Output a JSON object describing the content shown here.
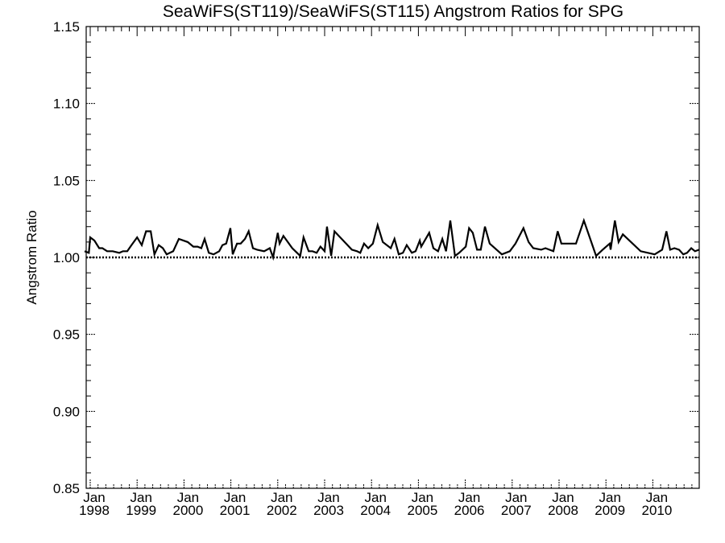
{
  "chart_data": {
    "type": "line",
    "title": "SeaWiFS(ST119)/SeaWiFS(ST115)  Angstrom Ratios for SPG",
    "xlabel": "",
    "ylabel": "Angstrom Ratio",
    "ylim": [
      0.85,
      1.15
    ],
    "xlim": [
      1997.91,
      2011.0
    ],
    "grid": false,
    "yticks": [
      0.85,
      0.9,
      0.95,
      1.0,
      1.05,
      1.1,
      1.15
    ],
    "ytick_labels": [
      "0.85",
      "0.90",
      "0.95",
      "1.00",
      "1.05",
      "1.10",
      "1.15"
    ],
    "xticks": [
      1998,
      1999,
      2000,
      2001,
      2002,
      2003,
      2004,
      2005,
      2006,
      2007,
      2008,
      2009,
      2010
    ],
    "xtick_labels": [
      [
        "Jan",
        "1998"
      ],
      [
        "Jan",
        "1999"
      ],
      [
        "Jan",
        "2000"
      ],
      [
        "Jan",
        "2001"
      ],
      [
        "Jan",
        "2002"
      ],
      [
        "Jan",
        "2003"
      ],
      [
        "Jan",
        "2004"
      ],
      [
        "Jan",
        "2005"
      ],
      [
        "Jan",
        "2006"
      ],
      [
        "Jan",
        "2007"
      ],
      [
        "Jan",
        "2008"
      ],
      [
        "Jan",
        "2009"
      ],
      [
        "Jan",
        "2010"
      ]
    ],
    "reference_line": {
      "y": 1.0,
      "style": "dotted"
    },
    "series": [
      {
        "name": "Angstrom Ratio",
        "color": "#000000",
        "x": [
          1997.88,
          1997.97,
          1998.0,
          1998.09,
          1998.19,
          1998.26,
          1998.36,
          1998.48,
          1998.62,
          1998.7,
          1998.79,
          1998.88,
          1999.0,
          1999.1,
          1999.19,
          1999.29,
          1999.37,
          1999.46,
          1999.55,
          1999.63,
          1999.77,
          1999.89,
          2000.08,
          2000.2,
          2000.29,
          2000.37,
          2000.44,
          2000.53,
          2000.63,
          2000.75,
          2000.82,
          2000.9,
          2000.99,
          2001.04,
          2001.13,
          2001.21,
          2001.3,
          2001.38,
          2001.47,
          2001.56,
          2001.71,
          2001.83,
          2001.9,
          2002.0,
          2002.04,
          2002.12,
          2002.31,
          2002.48,
          2002.55,
          2002.66,
          2002.74,
          2002.83,
          2002.91,
          2003.0,
          2003.05,
          2003.14,
          2003.21,
          2003.58,
          2003.69,
          2003.76,
          2003.84,
          2003.93,
          2004.03,
          2004.13,
          2004.24,
          2004.41,
          2004.49,
          2004.58,
          2004.67,
          2004.75,
          2004.86,
          2004.94,
          2005.03,
          2005.06,
          2005.23,
          2005.32,
          2005.42,
          2005.51,
          2005.59,
          2005.68,
          2005.78,
          2005.87,
          2006.01,
          2006.08,
          2006.16,
          2006.25,
          2006.33,
          2006.42,
          2006.52,
          2006.78,
          2006.95,
          2007.07,
          2007.24,
          2007.35,
          2007.45,
          2007.62,
          2007.71,
          2007.88,
          2007.97,
          2008.05,
          2008.36,
          2008.53,
          2008.79,
          2008.93,
          2009.08,
          2009.1,
          2009.19,
          2009.27,
          2009.36,
          2009.74,
          2010.04,
          2010.2,
          2010.29,
          2010.37,
          2010.46,
          2010.56,
          2010.65,
          2010.73,
          2010.82,
          2010.9,
          2010.99
        ],
        "y": [
          1.004,
          1.003,
          1.013,
          1.011,
          1.006,
          1.006,
          1.004,
          1.004,
          1.003,
          1.004,
          1.004,
          1.008,
          1.013,
          1.008,
          1.017,
          1.017,
          1.002,
          1.008,
          1.006,
          1.002,
          1.004,
          1.012,
          1.01,
          1.007,
          1.007,
          1.006,
          1.012,
          1.003,
          1.002,
          1.004,
          1.008,
          1.009,
          1.019,
          1.002,
          1.009,
          1.009,
          1.012,
          1.017,
          1.006,
          1.005,
          1.004,
          1.006,
          1.0,
          1.016,
          1.009,
          1.014,
          1.006,
          1.001,
          1.013,
          1.004,
          1.004,
          1.003,
          1.007,
          1.004,
          1.02,
          1.001,
          1.017,
          1.005,
          1.004,
          1.003,
          1.009,
          1.006,
          1.009,
          1.021,
          1.01,
          1.006,
          1.012,
          1.002,
          1.003,
          1.008,
          1.003,
          1.004,
          1.011,
          1.007,
          1.016,
          1.006,
          1.004,
          1.012,
          1.004,
          1.024,
          1.001,
          1.003,
          1.007,
          1.019,
          1.016,
          1.005,
          1.005,
          1.02,
          1.009,
          1.002,
          1.004,
          1.009,
          1.019,
          1.01,
          1.006,
          1.005,
          1.006,
          1.004,
          1.017,
          1.009,
          1.009,
          1.024,
          1.001,
          1.005,
          1.009,
          1.005,
          1.024,
          1.01,
          1.015,
          1.004,
          1.002,
          1.005,
          1.017,
          1.005,
          1.006,
          1.005,
          1.002,
          1.003,
          1.006,
          1.004,
          1.005
        ]
      }
    ]
  }
}
